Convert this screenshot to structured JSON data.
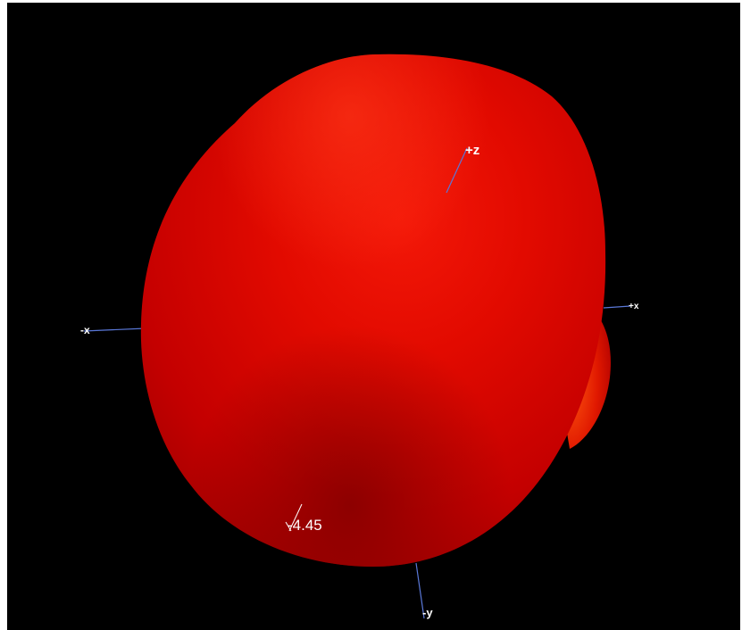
{
  "viewport": {
    "background_color": "#000000",
    "surface_color": "#e00000"
  },
  "axes": {
    "plus_z": "+z",
    "minus_x": "-x",
    "plus_x": "+x",
    "minus_y": "-y",
    "axis_color": "#5a78d8"
  },
  "annotation": {
    "value_label": "-4.45"
  }
}
